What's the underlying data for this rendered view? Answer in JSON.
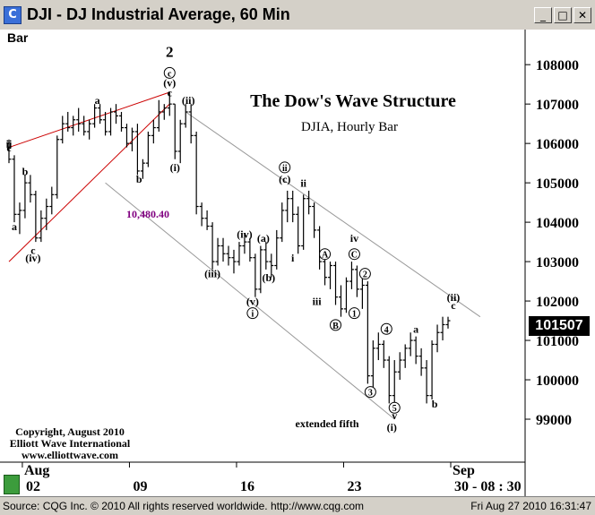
{
  "window": {
    "icon_letter": "C",
    "title": "DJI - DJ Industrial Average, 60 Min",
    "minimize": "_",
    "maximize": "□",
    "close": "✕"
  },
  "bar_label": "Bar",
  "current_price": "101507",
  "status": {
    "left": "Source: CQG Inc. © 2010 All rights reserved worldwide. http://www.cqg.com",
    "right": "Fri Aug 27 2010 16:31:47"
  },
  "chart_data": {
    "type": "ohlc",
    "title": "The Dow's Wave Structure",
    "subtitle": "DJIA, Hourly Bar",
    "ylim": [
      98000,
      108800
    ],
    "y_ticks": [
      99000,
      100000,
      101000,
      102000,
      103000,
      104000,
      105000,
      106000,
      107000,
      108000
    ],
    "x_ticks": [
      {
        "label": "02",
        "month": "Aug",
        "index": 2.5
      },
      {
        "label": "09",
        "month": "",
        "index": 22.5
      },
      {
        "label": "16",
        "month": "",
        "index": 42.5
      },
      {
        "label": "23",
        "month": "",
        "index": 62.5
      },
      {
        "label": "30 - 08 : 30",
        "month": "Sep",
        "index": 82.5
      }
    ],
    "price_label": "10,480.40",
    "copyright": [
      "Copyright, August 2010",
      "Elliott Wave International",
      "www.elliottwave.com"
    ],
    "wave_labels": [
      {
        "text": "ii",
        "x": 0,
        "y": 105900,
        "circle": false
      },
      {
        "text": "e",
        "x": 0,
        "y": 105800,
        "circle": false
      },
      {
        "text": "b",
        "x": 3,
        "y": 105200,
        "circle": false
      },
      {
        "text": "a",
        "x": 1,
        "y": 103800,
        "circle": false
      },
      {
        "text": "c",
        "x": 4.5,
        "y": 103200,
        "circle": false
      },
      {
        "text": "(iv)",
        "x": 4.5,
        "y": 103000,
        "circle": false
      },
      {
        "text": "a",
        "x": 16.5,
        "y": 107000,
        "circle": false
      },
      {
        "text": "b",
        "x": 24.3,
        "y": 105000,
        "circle": false
      },
      {
        "text": "2",
        "x": 30,
        "y": 108200,
        "circle": false
      },
      {
        "text": "c",
        "x": 30,
        "y": 107700,
        "circle": true
      },
      {
        "text": "(v)",
        "x": 30,
        "y": 107450,
        "circle": false
      },
      {
        "text": "c",
        "x": 30,
        "y": 107200,
        "circle": false
      },
      {
        "text": "(ii)",
        "x": 33.5,
        "y": 107000,
        "circle": false
      },
      {
        "text": "(i)",
        "x": 31,
        "y": 105300,
        "circle": false
      },
      {
        "text": "(iii)",
        "x": 38,
        "y": 102600,
        "circle": false
      },
      {
        "text": "(iv)",
        "x": 44,
        "y": 103600,
        "circle": false
      },
      {
        "text": "(a)",
        "x": 47.5,
        "y": 103500,
        "circle": false
      },
      {
        "text": "(b)",
        "x": 48.5,
        "y": 102500,
        "circle": false
      },
      {
        "text": "(v)",
        "x": 45.5,
        "y": 101900,
        "circle": false
      },
      {
        "text": "i",
        "x": 45.5,
        "y": 101600,
        "circle": true
      },
      {
        "text": "ii",
        "x": 51.5,
        "y": 105300,
        "circle": true
      },
      {
        "text": "(c)",
        "x": 51.5,
        "y": 105000,
        "circle": false
      },
      {
        "text": "ii",
        "x": 55,
        "y": 104900,
        "circle": false
      },
      {
        "text": "i",
        "x": 53,
        "y": 103000,
        "circle": false
      },
      {
        "text": "A",
        "x": 59,
        "y": 103100,
        "circle": true
      },
      {
        "text": "iii",
        "x": 57.5,
        "y": 101900,
        "circle": false
      },
      {
        "text": "B",
        "x": 61,
        "y": 101300,
        "circle": true
      },
      {
        "text": "iv",
        "x": 64.5,
        "y": 103500,
        "circle": false
      },
      {
        "text": "C",
        "x": 64.5,
        "y": 103100,
        "circle": true
      },
      {
        "text": "2",
        "x": 66.5,
        "y": 102600,
        "circle": true
      },
      {
        "text": "1",
        "x": 64.5,
        "y": 101600,
        "circle": true
      },
      {
        "text": "4",
        "x": 70.5,
        "y": 101200,
        "circle": true
      },
      {
        "text": "3",
        "x": 67.5,
        "y": 99600,
        "circle": true
      },
      {
        "text": "5",
        "x": 72,
        "y": 99200,
        "circle": true
      },
      {
        "text": "v",
        "x": 72,
        "y": 99000,
        "circle": false
      },
      {
        "text": "(i)",
        "x": 71.5,
        "y": 98700,
        "circle": false
      },
      {
        "text": "a",
        "x": 76,
        "y": 101200,
        "circle": false
      },
      {
        "text": "b",
        "x": 79.5,
        "y": 99300,
        "circle": false
      },
      {
        "text": "(ii)",
        "x": 83,
        "y": 102000,
        "circle": false
      },
      {
        "text": "c",
        "x": 83,
        "y": 101800,
        "circle": false
      }
    ],
    "wave_note": "extended fifth",
    "channels": [
      {
        "color": "#cc0000",
        "points": [
          [
            0,
            103000
          ],
          [
            30,
            107000
          ]
        ]
      },
      {
        "color": "#cc0000",
        "points": [
          [
            0,
            105900
          ],
          [
            30,
            107300
          ]
        ]
      },
      {
        "color": "#999999",
        "points": [
          [
            18,
            105000
          ],
          [
            72,
            99000
          ]
        ]
      },
      {
        "color": "#999999",
        "points": [
          [
            33,
            106800
          ],
          [
            88,
            101600
          ]
        ]
      }
    ],
    "ohlc": [
      [
        106000,
        106100,
        105500,
        105600
      ],
      [
        105600,
        105700,
        104000,
        104200
      ],
      [
        104200,
        104500,
        103700,
        104300
      ],
      [
        104300,
        105200,
        104100,
        105000
      ],
      [
        105000,
        105200,
        104500,
        104700
      ],
      [
        104700,
        104800,
        103500,
        103600
      ],
      [
        103600,
        104300,
        103500,
        104100
      ],
      [
        104100,
        104600,
        103800,
        104400
      ],
      [
        104400,
        104900,
        104200,
        104700
      ],
      [
        104700,
        106200,
        104600,
        106100
      ],
      [
        106100,
        106700,
        106000,
        106500
      ],
      [
        106500,
        106800,
        106300,
        106400
      ],
      [
        106400,
        106700,
        106200,
        106600
      ],
      [
        106600,
        106900,
        106300,
        106500
      ],
      [
        106500,
        106700,
        106200,
        106300
      ],
      [
        106300,
        106600,
        106100,
        106500
      ],
      [
        106500,
        107000,
        106400,
        106900
      ],
      [
        106900,
        107000,
        106500,
        106600
      ],
      [
        106600,
        106800,
        106200,
        106300
      ],
      [
        106300,
        106900,
        106200,
        106800
      ],
      [
        106800,
        107000,
        106500,
        106700
      ],
      [
        106700,
        106800,
        106300,
        106400
      ],
      [
        106400,
        106500,
        105900,
        106000
      ],
      [
        106000,
        106400,
        105800,
        106300
      ],
      [
        106300,
        106500,
        105200,
        105300
      ],
      [
        105300,
        105600,
        105100,
        105500
      ],
      [
        105500,
        106300,
        105400,
        106200
      ],
      [
        106200,
        106600,
        106000,
        106400
      ],
      [
        106400,
        107100,
        106300,
        106800
      ],
      [
        106800,
        107000,
        106600,
        106900
      ],
      [
        106900,
        107300,
        106700,
        107000
      ],
      [
        107000,
        107000,
        105600,
        105800
      ],
      [
        105800,
        106600,
        105500,
        106500
      ],
      [
        106500,
        107000,
        106400,
        106800
      ],
      [
        106800,
        107000,
        106000,
        106200
      ],
      [
        106200,
        106300,
        104200,
        104400
      ],
      [
        104400,
        104500,
        103900,
        104100
      ],
      [
        104100,
        104300,
        103800,
        103900
      ],
      [
        103900,
        104000,
        102800,
        103000
      ],
      [
        103000,
        103600,
        102900,
        103400
      ],
      [
        103400,
        103600,
        103000,
        103200
      ],
      [
        103200,
        103400,
        102900,
        103100
      ],
      [
        103100,
        103300,
        102700,
        103000
      ],
      [
        103000,
        103500,
        102900,
        103400
      ],
      [
        103400,
        103700,
        103200,
        103500
      ],
      [
        103500,
        103600,
        103000,
        103100
      ],
      [
        103100,
        103200,
        102100,
        102300
      ],
      [
        102300,
        103400,
        102200,
        103300
      ],
      [
        103300,
        103500,
        102800,
        103000
      ],
      [
        103000,
        103200,
        102600,
        102900
      ],
      [
        102900,
        103800,
        102800,
        103600
      ],
      [
        103600,
        104500,
        103500,
        104300
      ],
      [
        104300,
        104800,
        104000,
        104600
      ],
      [
        104600,
        104800,
        104000,
        104200
      ],
      [
        104200,
        104400,
        103200,
        103400
      ],
      [
        103400,
        104700,
        103300,
        104600
      ],
      [
        104600,
        104800,
        104200,
        104400
      ],
      [
        104400,
        104500,
        103600,
        103800
      ],
      [
        103800,
        103900,
        102800,
        103000
      ],
      [
        103000,
        103200,
        102400,
        102600
      ],
      [
        102600,
        103000,
        102300,
        102900
      ],
      [
        102900,
        103000,
        101900,
        102100
      ],
      [
        102100,
        102400,
        101600,
        101800
      ],
      [
        101800,
        102600,
        101700,
        102500
      ],
      [
        102500,
        103000,
        102300,
        102800
      ],
      [
        102800,
        102900,
        102100,
        102300
      ],
      [
        102300,
        102600,
        101800,
        102400
      ],
      [
        102400,
        102500,
        99900,
        100100
      ],
      [
        100100,
        101000,
        99800,
        100800
      ],
      [
        100800,
        101200,
        100500,
        100900
      ],
      [
        100900,
        101000,
        100300,
        100500
      ],
      [
        100500,
        100600,
        99400,
        99600
      ],
      [
        99600,
        100500,
        99400,
        100200
      ],
      [
        100200,
        100700,
        100000,
        100500
      ],
      [
        100500,
        100900,
        100300,
        100800
      ],
      [
        100800,
        101200,
        100600,
        101000
      ],
      [
        101000,
        101100,
        100400,
        100600
      ],
      [
        100600,
        100800,
        100100,
        100300
      ],
      [
        100300,
        100500,
        99400,
        99600
      ],
      [
        99600,
        101000,
        99500,
        100900
      ],
      [
        100900,
        101400,
        100700,
        101200
      ],
      [
        101200,
        101600,
        101000,
        101400
      ],
      [
        101400,
        101600,
        101300,
        101500
      ]
    ]
  }
}
